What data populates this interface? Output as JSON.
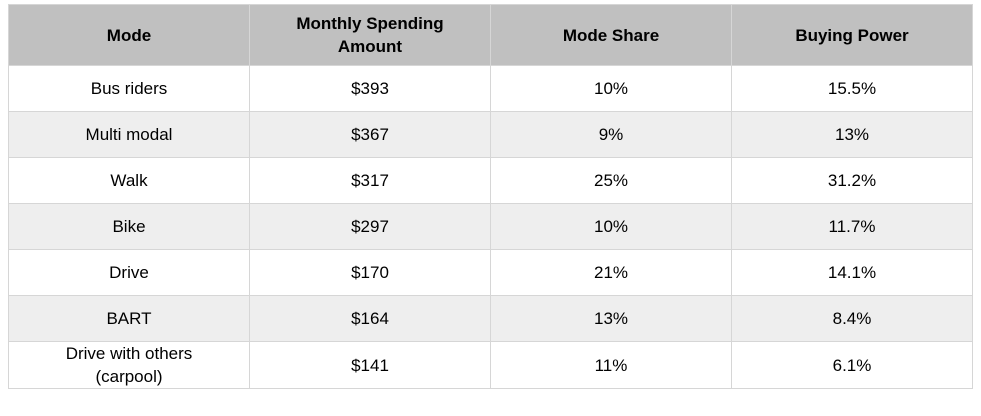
{
  "chart_data": {
    "type": "table",
    "columns": [
      "Mode",
      "Monthly Spending Amount",
      "Mode Share",
      "Buying Power"
    ],
    "rows": [
      [
        "Bus riders",
        "$393",
        "10%",
        "15.5%"
      ],
      [
        "Multi modal",
        "$367",
        "9%",
        "13%"
      ],
      [
        "Walk",
        "$317",
        "25%",
        "31.2%"
      ],
      [
        "Bike",
        "$297",
        "10%",
        "11.7%"
      ],
      [
        "Drive",
        "$170",
        "21%",
        "14.1%"
      ],
      [
        "BART",
        "$164",
        "13%",
        "8.4%"
      ],
      [
        "Drive with others (carpool)",
        "$141",
        "11%",
        "6.1%"
      ]
    ]
  },
  "colors": {
    "header_bg": "#c0c0c0",
    "alt_row_bg": "#eeeeee",
    "border": "#d6d6d6",
    "text": "#000000",
    "page_bg": "#ffffff"
  }
}
